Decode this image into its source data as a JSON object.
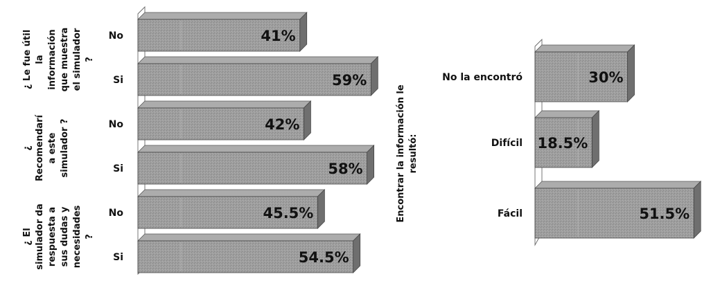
{
  "chart_data": [
    {
      "type": "bar",
      "orientation": "horizontal",
      "style": "3d",
      "bar_color": "#9a9a9a",
      "xlim": [
        0,
        100
      ],
      "groups": [
        {
          "label": "¿ Le fue útil la información que muestra el simulador ?",
          "lines": [
            "¿ Le fue útil",
            "la",
            "información",
            "que muestra",
            "el simulador",
            "?"
          ]
        },
        {
          "label": "¿ Recomendaría este simulador ?",
          "lines": [
            "¿",
            "Recomendarí",
            "a este",
            "simulador ?"
          ]
        },
        {
          "label": "¿ El simulador da respuesta a sus dudas y necesidades ?",
          "lines": [
            "¿ El",
            "simulador da",
            "respuesta a",
            "sus dudas y",
            "necesidades",
            "?"
          ]
        }
      ],
      "bars": [
        {
          "group": 0,
          "category": "No",
          "value": 41,
          "label": "41%"
        },
        {
          "group": 0,
          "category": "Si",
          "value": 59,
          "label": "59%"
        },
        {
          "group": 1,
          "category": "No",
          "value": 42,
          "label": "42%"
        },
        {
          "group": 1,
          "category": "Si",
          "value": 58,
          "label": "58%"
        },
        {
          "group": 2,
          "category": "No",
          "value": 45.5,
          "label": "45.5%"
        },
        {
          "group": 2,
          "category": "Si",
          "value": 54.5,
          "label": "54.5%"
        }
      ]
    },
    {
      "type": "bar",
      "orientation": "horizontal",
      "style": "3d",
      "bar_color": "#9a9a9a",
      "xlim": [
        0,
        100
      ],
      "axis_title": "Encontrar la información le resultó:",
      "axis_title_lines": [
        "Encontrar la información le",
        "resultó:"
      ],
      "bars": [
        {
          "category": "No la encontró",
          "value": 30,
          "label": "30%"
        },
        {
          "category": "Difícil",
          "value": 18.5,
          "label": "18.5%"
        },
        {
          "category": "Fácil",
          "value": 51.5,
          "label": "51.5%"
        }
      ]
    }
  ]
}
